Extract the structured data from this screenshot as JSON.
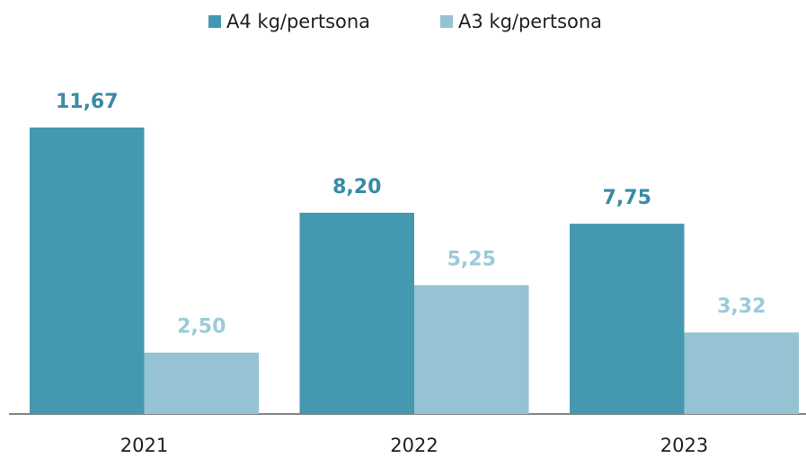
{
  "chart_data": {
    "type": "bar",
    "categories": [
      "2021",
      "2022",
      "2023"
    ],
    "series": [
      {
        "name": "A4 kg/pertsona",
        "color": "#4499b0",
        "label_color": "#3a8ba3",
        "values": [
          11.67,
          8.2,
          7.75
        ],
        "value_labels": [
          "11,67",
          "8,20",
          "7,75"
        ]
      },
      {
        "name": "A3 kg/pertsona",
        "color": "#95c3d3",
        "label_color": "#9ccadb",
        "values": [
          2.5,
          5.25,
          3.32
        ],
        "value_labels": [
          "2,50",
          "5,25",
          "3,32"
        ]
      }
    ]
  }
}
